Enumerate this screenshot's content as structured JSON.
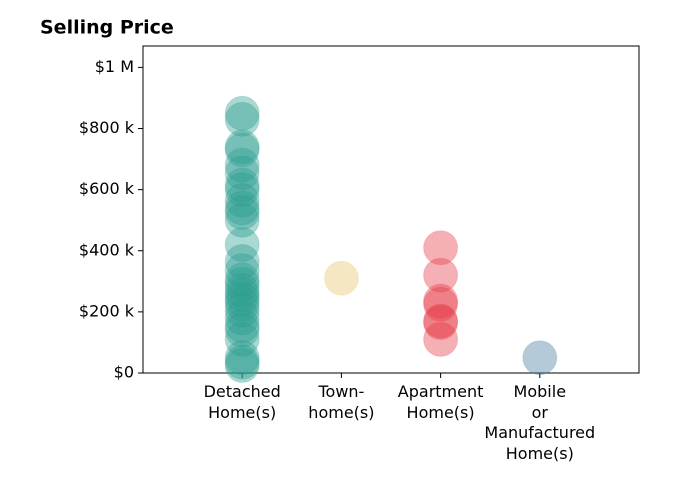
{
  "chart_data": {
    "type": "strip",
    "title": "Selling Price",
    "categories": [
      "Detached\nHome(s)",
      "Town-\nhome(s)",
      "Apartment\nHome(s)",
      "Mobile\nor\nManufactured\nHome(s)"
    ],
    "values": [
      [
        850000,
        830000,
        740000,
        730000,
        680000,
        655000,
        615000,
        600000,
        565000,
        540000,
        525000,
        500000,
        420000,
        365000,
        335000,
        305000,
        290000,
        270000,
        255000,
        240000,
        225000,
        205000,
        180000,
        155000,
        140000,
        110000,
        50000,
        35000,
        25000
      ],
      [
        310000
      ],
      [
        410000,
        320000,
        235000,
        225000,
        170000,
        165000,
        110000
      ],
      [
        50000
      ]
    ],
    "colors": [
      "#2a9d8f",
      "#e9c46a",
      "#e63946",
      "#457b9d"
    ],
    "ylim": [
      0,
      1070000
    ],
    "yticks": [
      {
        "value": 0,
        "label": "$0"
      },
      {
        "value": 200000,
        "label": "$200 k"
      },
      {
        "value": 400000,
        "label": "$400 k"
      },
      {
        "value": 600000,
        "label": "$600 k"
      },
      {
        "value": 800000,
        "label": "$800 k"
      },
      {
        "value": 1000000,
        "label": "$1 M"
      }
    ]
  }
}
